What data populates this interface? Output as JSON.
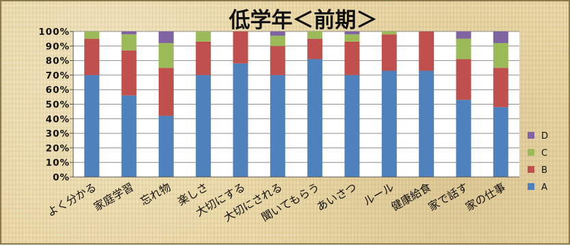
{
  "chart_data": {
    "type": "bar",
    "stacked": true,
    "title": "低学年＜前期＞",
    "xlabel": "",
    "ylabel": "",
    "ylim": [
      0,
      100
    ],
    "y_ticks": [
      "0%",
      "10%",
      "20%",
      "30%",
      "40%",
      "50%",
      "60%",
      "70%",
      "80%",
      "90%",
      "100%"
    ],
    "grid": true,
    "legend_position": "right",
    "categories": [
      "よく分かる",
      "家庭学習",
      "忘れ物",
      "楽しさ",
      "大切にする",
      "大切にされる",
      "聞いてもらう",
      "あいさつ",
      "ルール",
      "健康給食",
      "家で話す",
      "家の仕事"
    ],
    "series": [
      {
        "name": "A",
        "color": "#4f81bd",
        "values": [
          70,
          56,
          42,
          70,
          78,
          70,
          81,
          70,
          73,
          73,
          53,
          48
        ]
      },
      {
        "name": "B",
        "color": "#c0504d",
        "values": [
          25,
          31,
          33,
          23,
          22,
          20,
          14,
          23,
          25,
          27,
          28,
          27
        ]
      },
      {
        "name": "C",
        "color": "#9bbb59",
        "values": [
          5,
          11,
          17,
          7,
          0,
          7,
          5,
          5,
          2,
          0,
          14,
          17
        ]
      },
      {
        "name": "D",
        "color": "#8064a2",
        "values": [
          0,
          2,
          8,
          0,
          0,
          3,
          0,
          2,
          0,
          0,
          5,
          8
        ]
      }
    ]
  }
}
